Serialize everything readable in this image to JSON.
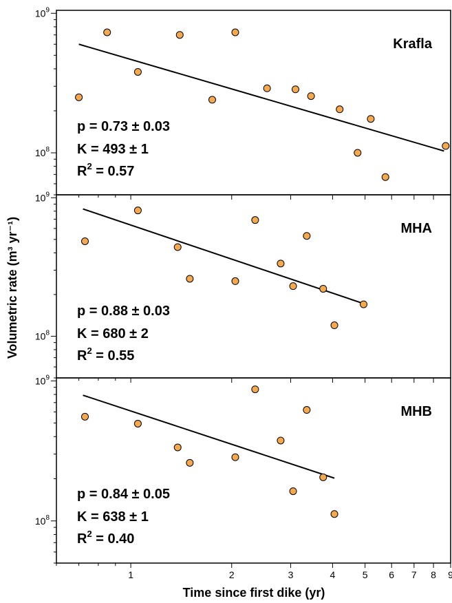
{
  "chart_data": {
    "type": "scatter",
    "xlabel": "Time since first dike (yr)",
    "ylabel": "Volumetric rate (m³ yr⁻¹)",
    "x_scale": "log",
    "y_scale": "log",
    "xlim": [
      0.6,
      9
    ],
    "x_ticks_labeled": [
      "1",
      "2",
      "3",
      "4",
      "5",
      "6",
      "7",
      "8",
      "9"
    ],
    "panels": [
      {
        "name": "Krafla",
        "ylim": [
          50000000.0,
          1050000000.0
        ],
        "y_ticks_labeled": [
          "10⁸",
          "10⁹"
        ],
        "points": [
          [
            0.7,
            250000000.0
          ],
          [
            0.85,
            730000000.0
          ],
          [
            1.05,
            380000000.0
          ],
          [
            1.4,
            700000000.0
          ],
          [
            1.75,
            240000000.0
          ],
          [
            2.05,
            730000000.0
          ],
          [
            2.55,
            290000000.0
          ],
          [
            3.1,
            285000000.0
          ],
          [
            3.45,
            255000000.0
          ],
          [
            4.2,
            205000000.0
          ],
          [
            4.75,
            100000000.0
          ],
          [
            5.2,
            175000000.0
          ],
          [
            5.75,
            67000000.0
          ],
          [
            8.7,
            112000000.0
          ]
        ],
        "fit": {
          "x": [
            0.7,
            8.6
          ],
          "y": [
            600000000.0,
            103000000.0
          ]
        },
        "stats": {
          "p": "p = 0.73 ± 0.03",
          "K": "K = 493 ± 1",
          "R2_prefix": "R",
          "R2_sup": "2",
          "R2_value": " = 0.57"
        }
      },
      {
        "name": "MHA",
        "ylim": [
          50000000.0,
          1050000000.0
        ],
        "y_ticks_labeled": [
          "10⁸",
          "10⁹"
        ],
        "points": [
          [
            0.73,
            485000000.0
          ],
          [
            1.05,
            810000000.0
          ],
          [
            1.38,
            440000000.0
          ],
          [
            1.5,
            260000000.0
          ],
          [
            2.05,
            250000000.0
          ],
          [
            2.35,
            690000000.0
          ],
          [
            2.8,
            335000000.0
          ],
          [
            3.05,
            230000000.0
          ],
          [
            3.35,
            530000000.0
          ],
          [
            3.75,
            220000000.0
          ],
          [
            4.05,
            120000000.0
          ],
          [
            4.95,
            170000000.0
          ]
        ],
        "fit": {
          "x": [
            0.72,
            4.95
          ],
          "y": [
            830000000.0,
            172000000.0
          ]
        },
        "stats": {
          "p": "p = 0.88 ± 0.03",
          "K": "K = 680 ± 2",
          "R2_prefix": "R",
          "R2_sup": "2",
          "R2_value": " = 0.55"
        }
      },
      {
        "name": "MHB",
        "ylim": [
          50000000.0,
          1050000000.0
        ],
        "y_ticks_labeled": [
          "10⁸",
          "10⁹"
        ],
        "points": [
          [
            0.73,
            555000000.0
          ],
          [
            1.05,
            495000000.0
          ],
          [
            1.38,
            335000000.0
          ],
          [
            1.5,
            260000000.0
          ],
          [
            2.05,
            285000000.0
          ],
          [
            2.35,
            870000000.0
          ],
          [
            2.8,
            375000000.0
          ],
          [
            3.05,
            163000000.0
          ],
          [
            3.35,
            620000000.0
          ],
          [
            3.75,
            205000000.0
          ],
          [
            4.05,
            112000000.0
          ]
        ],
        "fit": {
          "x": [
            0.72,
            4.05
          ],
          "y": [
            790000000.0,
            202000000.0
          ]
        },
        "stats": {
          "p": "p = 0.84 ± 0.05",
          "K": "K = 638 ± 1",
          "R2_prefix": "R",
          "R2_sup": "2",
          "R2_value": " = 0.40"
        }
      }
    ]
  },
  "style": {
    "marker_fill": "#f4a94e",
    "marker_stroke": "#000000"
  }
}
